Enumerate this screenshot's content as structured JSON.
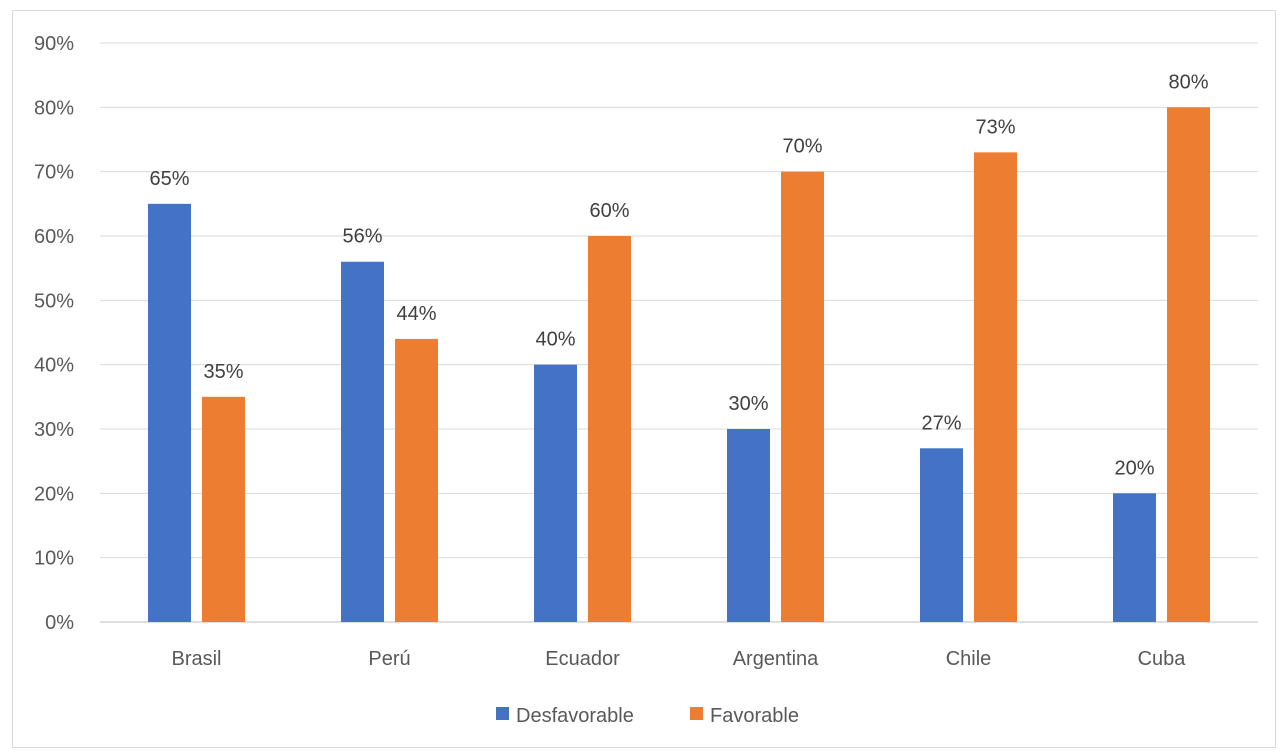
{
  "chart_data": {
    "type": "bar",
    "title": "",
    "xlabel": "",
    "ylabel": "",
    "categories": [
      "Brasil",
      "Perú",
      "Ecuador",
      "Argentina",
      "Chile",
      "Cuba"
    ],
    "series": [
      {
        "name": "Desfavorable",
        "color": "#4472c4",
        "values": [
          65,
          56,
          40,
          30,
          27,
          20
        ]
      },
      {
        "name": "Favorable",
        "color": "#ed7d31",
        "values": [
          35,
          44,
          60,
          70,
          73,
          80
        ]
      }
    ],
    "ylim": [
      0,
      90
    ],
    "yticks": [
      0,
      10,
      20,
      30,
      40,
      50,
      60,
      70,
      80,
      90
    ],
    "ytick_labels": [
      "0%",
      "10%",
      "20%",
      "30%",
      "40%",
      "50%",
      "60%",
      "70%",
      "80%",
      "90%"
    ],
    "value_labels": [
      [
        "65%",
        "56%",
        "40%",
        "30%",
        "27%",
        "20%"
      ],
      [
        "35%",
        "44%",
        "60%",
        "70%",
        "73%",
        "80%"
      ]
    ],
    "grid": true,
    "legend_position": "bottom",
    "gridline_color": "#d9d9d9"
  }
}
